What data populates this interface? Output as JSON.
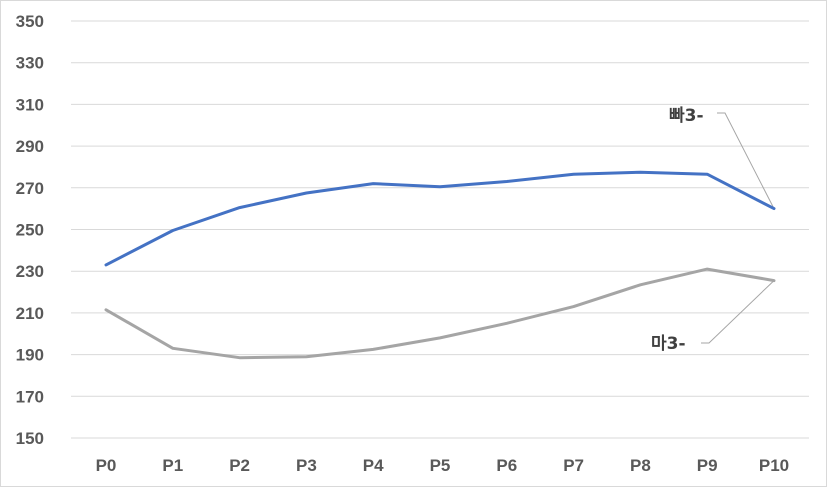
{
  "chart_data": {
    "type": "line",
    "categories": [
      "P0",
      "P1",
      "P2",
      "P3",
      "P4",
      "P5",
      "P6",
      "P7",
      "P8",
      "P9",
      "P10"
    ],
    "series": [
      {
        "name": "빠3-",
        "color": "#4472c4",
        "values": [
          233,
          249.5,
          260.5,
          267.5,
          272,
          270.5,
          273,
          276.5,
          277.5,
          276.5,
          260
        ]
      },
      {
        "name": "마3-",
        "color": "#a5a5a5",
        "values": [
          211.5,
          193,
          188.5,
          189,
          192.5,
          198,
          205,
          213,
          223.5,
          231,
          225.5
        ]
      }
    ],
    "ylim": [
      150,
      350
    ],
    "yticks": [
      150,
      170,
      190,
      210,
      230,
      250,
      270,
      290,
      310,
      330,
      350
    ],
    "grid": true,
    "legend": "data-callouts",
    "gridline_color": "#d9d9d9",
    "leader_line_color": "#a6a6a6"
  }
}
